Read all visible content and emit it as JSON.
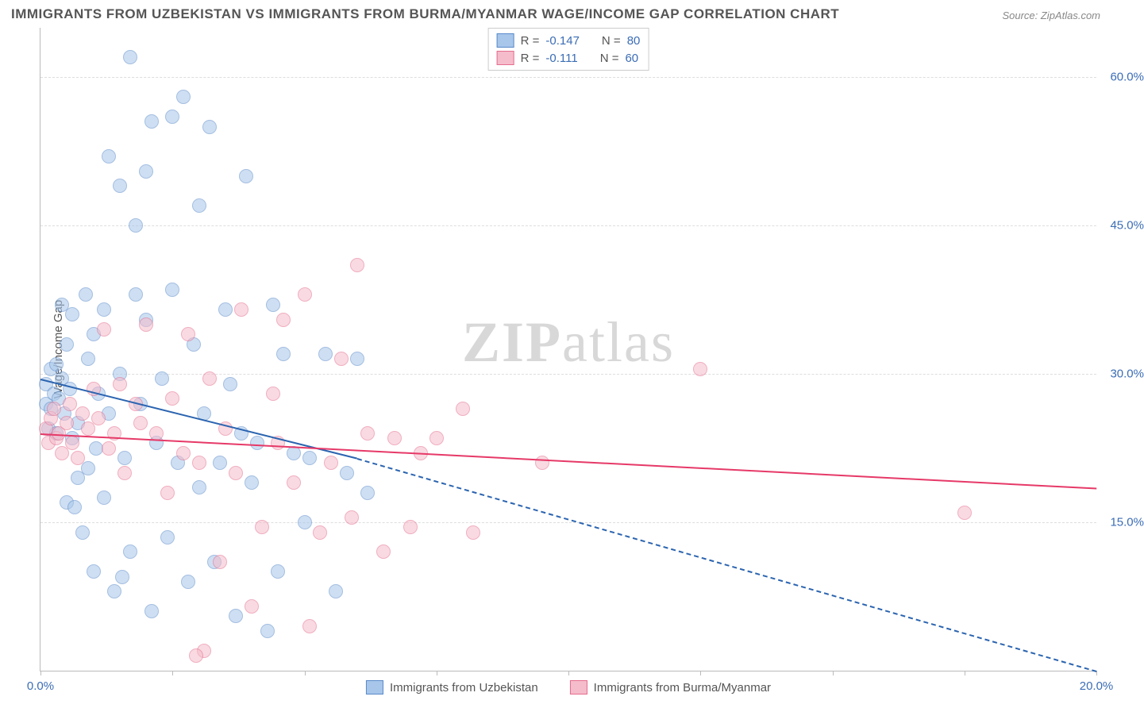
{
  "title": "IMMIGRANTS FROM UZBEKISTAN VS IMMIGRANTS FROM BURMA/MYANMAR WAGE/INCOME GAP CORRELATION CHART",
  "source": "Source: ZipAtlas.com",
  "ylabel": "Wage/Income Gap",
  "watermark_a": "ZIP",
  "watermark_b": "atlas",
  "chart": {
    "type": "scatter",
    "background_color": "#ffffff",
    "gridline_color": "#dddddd",
    "axis_color": "#bbbbbb",
    "tick_label_color": "#3b6db5",
    "axis_label_color": "#555555",
    "xlim": [
      0,
      20
    ],
    "ylim": [
      0,
      65
    ],
    "yticks": [
      15,
      30,
      45,
      60
    ],
    "ytick_labels": [
      "15.0%",
      "30.0%",
      "45.0%",
      "60.0%"
    ],
    "xticks": [
      0,
      2.5,
      5,
      7.5,
      10,
      12.5,
      15,
      17.5,
      20
    ],
    "xtick_labels": {
      "0": "0.0%",
      "20": "20.0%"
    },
    "marker_radius": 8,
    "marker_opacity": 0.55,
    "series": [
      {
        "id": "uzbekistan",
        "label": "Immigrants from Uzbekistan",
        "marker_fill": "#a7c6ea",
        "marker_stroke": "#5a8ac9",
        "trend_color": "#2b64b0",
        "R": "-0.147",
        "N": "80",
        "trend_solid": {
          "x1": 0,
          "y1": 29.5,
          "x2": 6,
          "y2": 21.5
        },
        "trend_dash": {
          "x1": 6,
          "y1": 21.5,
          "x2": 20,
          "y2": 0
        },
        "points": [
          [
            0.1,
            29
          ],
          [
            0.1,
            27
          ],
          [
            0.15,
            24.5
          ],
          [
            0.2,
            26.5
          ],
          [
            0.2,
            30.5
          ],
          [
            0.25,
            28
          ],
          [
            0.3,
            24
          ],
          [
            0.3,
            31
          ],
          [
            0.35,
            27.5
          ],
          [
            0.4,
            37
          ],
          [
            0.4,
            29.5
          ],
          [
            0.45,
            26
          ],
          [
            0.5,
            33
          ],
          [
            0.5,
            17
          ],
          [
            0.55,
            28.5
          ],
          [
            0.6,
            23.5
          ],
          [
            0.6,
            36
          ],
          [
            0.7,
            19.5
          ],
          [
            0.7,
            25
          ],
          [
            0.8,
            14
          ],
          [
            0.85,
            38
          ],
          [
            0.9,
            31.5
          ],
          [
            0.9,
            20.5
          ],
          [
            1.0,
            34
          ],
          [
            1.0,
            10
          ],
          [
            1.05,
            22.5
          ],
          [
            1.1,
            28
          ],
          [
            1.2,
            36.5
          ],
          [
            1.2,
            17.5
          ],
          [
            1.3,
            52
          ],
          [
            1.3,
            26
          ],
          [
            1.4,
            8
          ],
          [
            1.5,
            30
          ],
          [
            1.5,
            49
          ],
          [
            1.6,
            21.5
          ],
          [
            1.7,
            62
          ],
          [
            1.7,
            12
          ],
          [
            1.8,
            38
          ],
          [
            1.8,
            45
          ],
          [
            1.9,
            27
          ],
          [
            2.0,
            35.5
          ],
          [
            2.1,
            55.5
          ],
          [
            2.1,
            6
          ],
          [
            2.2,
            23
          ],
          [
            2.3,
            29.5
          ],
          [
            2.4,
            13.5
          ],
          [
            2.5,
            38.5
          ],
          [
            2.5,
            56
          ],
          [
            2.6,
            21
          ],
          [
            2.7,
            58
          ],
          [
            2.8,
            9
          ],
          [
            2.9,
            33
          ],
          [
            3.0,
            47
          ],
          [
            3.0,
            18.5
          ],
          [
            3.1,
            26
          ],
          [
            3.2,
            55
          ],
          [
            3.3,
            11
          ],
          [
            3.4,
            21
          ],
          [
            3.5,
            36.5
          ],
          [
            3.6,
            29
          ],
          [
            3.7,
            5.5
          ],
          [
            3.8,
            24
          ],
          [
            3.9,
            50
          ],
          [
            4.0,
            19
          ],
          [
            4.1,
            23
          ],
          [
            4.3,
            4
          ],
          [
            4.4,
            37
          ],
          [
            4.5,
            10
          ],
          [
            4.6,
            32
          ],
          [
            4.8,
            22
          ],
          [
            5.0,
            15
          ],
          [
            5.1,
            21.5
          ],
          [
            5.4,
            32
          ],
          [
            5.6,
            8
          ],
          [
            5.8,
            20
          ],
          [
            6.0,
            31.5
          ],
          [
            6.2,
            18
          ],
          [
            2.0,
            50.5
          ],
          [
            1.55,
            9.5
          ],
          [
            0.65,
            16.5
          ]
        ]
      },
      {
        "id": "burma",
        "label": "Immigrants from Burma/Myanmar",
        "marker_fill": "#f5bccb",
        "marker_stroke": "#e56d8e",
        "trend_color": "#e63968",
        "R": "-0.111",
        "N": "60",
        "trend_solid": {
          "x1": 0,
          "y1": 24,
          "x2": 20,
          "y2": 18.5
        },
        "points": [
          [
            0.1,
            24.5
          ],
          [
            0.15,
            23
          ],
          [
            0.2,
            25.5
          ],
          [
            0.25,
            26.5
          ],
          [
            0.3,
            23.5
          ],
          [
            0.35,
            24
          ],
          [
            0.4,
            22
          ],
          [
            0.5,
            25
          ],
          [
            0.55,
            27
          ],
          [
            0.6,
            23
          ],
          [
            0.7,
            21.5
          ],
          [
            0.8,
            26
          ],
          [
            0.9,
            24.5
          ],
          [
            1.0,
            28.5
          ],
          [
            1.1,
            25.5
          ],
          [
            1.2,
            34.5
          ],
          [
            1.3,
            22.5
          ],
          [
            1.4,
            24
          ],
          [
            1.5,
            29
          ],
          [
            1.6,
            20
          ],
          [
            1.8,
            27
          ],
          [
            1.9,
            25
          ],
          [
            2.0,
            35
          ],
          [
            2.2,
            24
          ],
          [
            2.4,
            18
          ],
          [
            2.5,
            27.5
          ],
          [
            2.7,
            22
          ],
          [
            2.8,
            34
          ],
          [
            3.0,
            21
          ],
          [
            3.1,
            2
          ],
          [
            3.2,
            29.5
          ],
          [
            3.4,
            11
          ],
          [
            3.5,
            24.5
          ],
          [
            3.7,
            20
          ],
          [
            3.8,
            36.5
          ],
          [
            4.0,
            6.5
          ],
          [
            4.2,
            14.5
          ],
          [
            4.4,
            28
          ],
          [
            4.5,
            23
          ],
          [
            4.8,
            19
          ],
          [
            5.0,
            38
          ],
          [
            5.1,
            4.5
          ],
          [
            5.3,
            14
          ],
          [
            5.5,
            21
          ],
          [
            5.7,
            31.5
          ],
          [
            5.9,
            15.5
          ],
          [
            6.0,
            41
          ],
          [
            6.2,
            24
          ],
          [
            6.5,
            12
          ],
          [
            6.7,
            23.5
          ],
          [
            7.0,
            14.5
          ],
          [
            7.2,
            22
          ],
          [
            7.5,
            23.5
          ],
          [
            8.0,
            26.5
          ],
          [
            8.2,
            14
          ],
          [
            9.5,
            21
          ],
          [
            12.5,
            30.5
          ],
          [
            17.5,
            16
          ],
          [
            4.6,
            35.5
          ],
          [
            2.95,
            1.5
          ]
        ]
      }
    ]
  },
  "legend_top": {
    "R_label": "R =",
    "N_label": "N ="
  }
}
